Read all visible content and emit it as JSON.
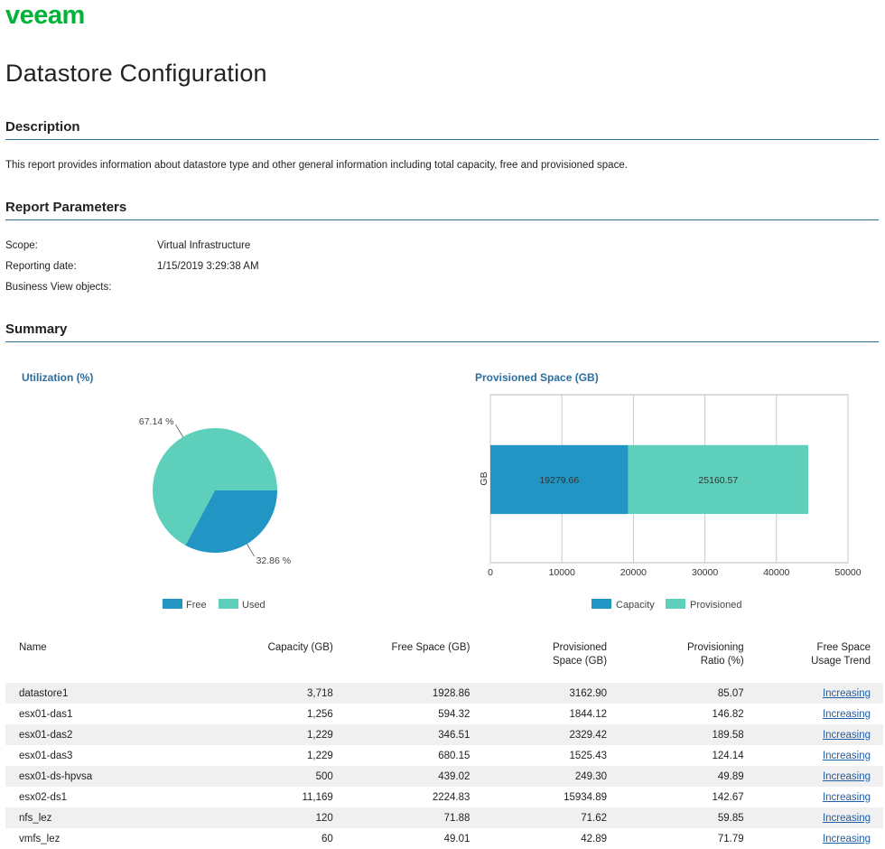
{
  "logo": {
    "text": "veeam",
    "color": "#00b336"
  },
  "title": "Datastore Configuration",
  "description": {
    "heading": "Description",
    "text": "This report provides information about datastore type and other general information including total capacity, free and provisioned space."
  },
  "parameters": {
    "heading": "Report Parameters",
    "items": [
      {
        "label": "Scope:",
        "value": "Virtual Infrastructure"
      },
      {
        "label": "Reporting date:",
        "value": "1/15/2019 3:29:38 AM"
      },
      {
        "label": "Business View objects:",
        "value": ""
      }
    ]
  },
  "summary": {
    "heading": "Summary"
  },
  "colors": {
    "free": "#2196c4",
    "used": "#5ecfba",
    "capacity": "#2196c4",
    "provisioned": "#5ecfba",
    "accent": "#2b6fa0"
  },
  "chart_data": [
    {
      "type": "pie",
      "title": "Utilization (%)",
      "slices": [
        {
          "name": "Free",
          "value": 32.86,
          "label": "32.86 %"
        },
        {
          "name": "Used",
          "value": 67.14,
          "label": "67.14 %"
        }
      ],
      "legend": [
        "Free",
        "Used"
      ]
    },
    {
      "type": "bar",
      "orientation": "horizontal",
      "stacked": true,
      "title": "Provisioned Space (GB)",
      "ylabel": "GB",
      "xlim": [
        0,
        50000
      ],
      "xticks": [
        "0",
        "10000",
        "20000",
        "30000",
        "40000",
        "50000"
      ],
      "series": [
        {
          "name": "Capacity",
          "values": [
            19279.66
          ],
          "label": "19279.66"
        },
        {
          "name": "Provisioned",
          "values": [
            25160.57
          ],
          "label": "25160.57"
        }
      ],
      "grid": true
    }
  ],
  "table": {
    "headers": [
      "Name",
      "Capacity (GB)",
      "Free Space (GB)",
      "Provisioned Space (GB)",
      "Provisioning Ratio (%)",
      "Free Space Usage Trend"
    ],
    "rows": [
      [
        "datastore1",
        "3,718",
        "1928.86",
        "3162.90",
        "85.07",
        "Increasing"
      ],
      [
        "esx01-das1",
        "1,256",
        "594.32",
        "1844.12",
        "146.82",
        "Increasing"
      ],
      [
        "esx01-das2",
        "1,229",
        "346.51",
        "2329.42",
        "189.58",
        "Increasing"
      ],
      [
        "esx01-das3",
        "1,229",
        "680.15",
        "1525.43",
        "124.14",
        "Increasing"
      ],
      [
        "esx01-ds-hpvsa",
        "500",
        "439.02",
        "249.30",
        "49.89",
        "Increasing"
      ],
      [
        "esx02-ds1",
        "11,169",
        "2224.83",
        "15934.89",
        "142.67",
        "Increasing"
      ],
      [
        "nfs_lez",
        "120",
        "71.88",
        "71.62",
        "59.85",
        "Increasing"
      ],
      [
        "vmfs_lez",
        "60",
        "49.01",
        "42.89",
        "71.79",
        "Increasing"
      ]
    ]
  }
}
